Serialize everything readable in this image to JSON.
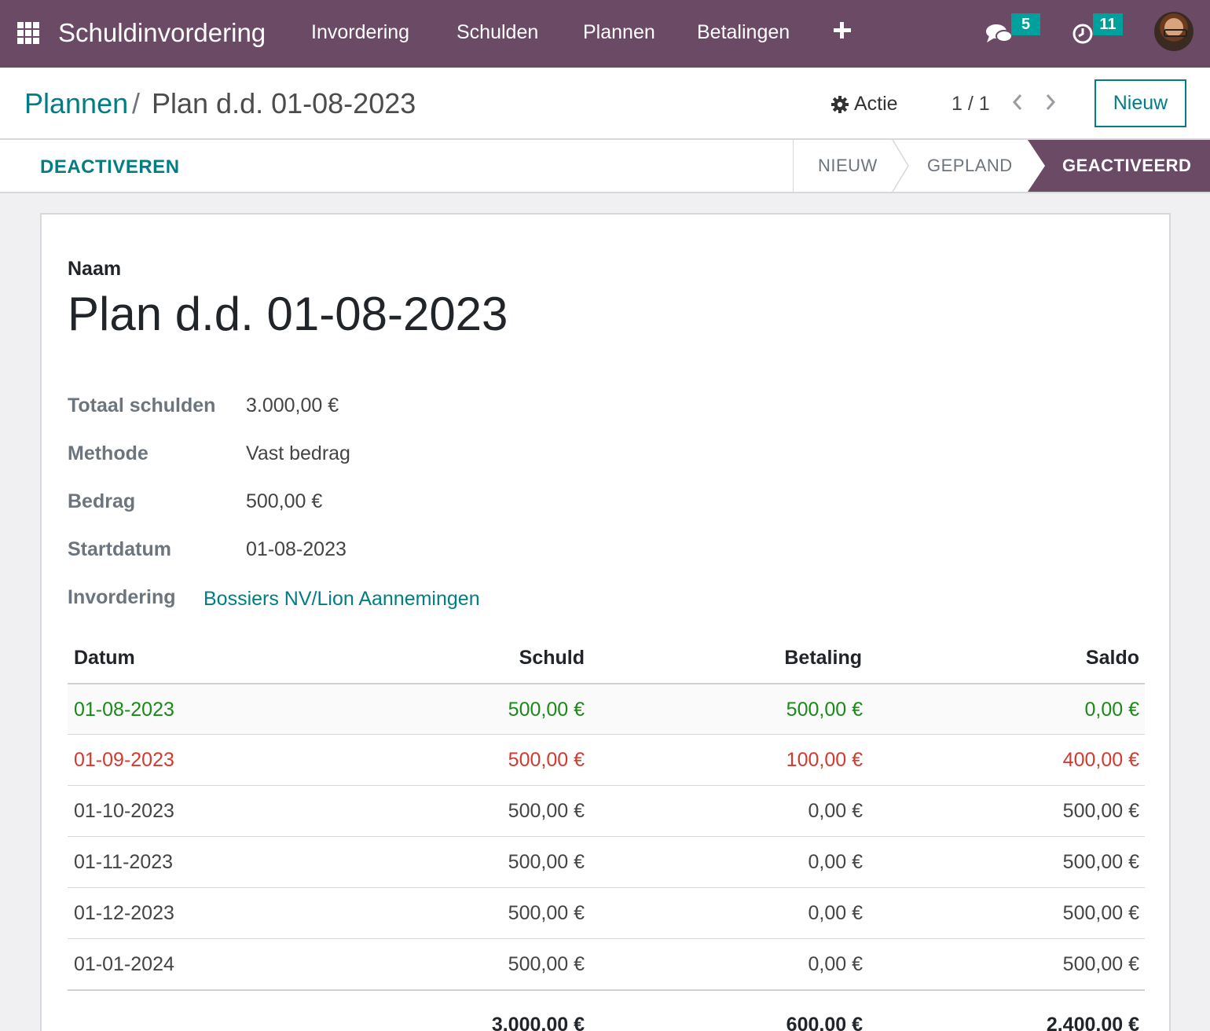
{
  "navbar": {
    "brand": "Schuldinvordering",
    "menu": [
      "Invordering",
      "Schulden",
      "Plannen",
      "Betalingen"
    ],
    "messages_badge": "5",
    "activities_badge": "11",
    "icons": [
      "apps-grid-icon",
      "plus-icon",
      "chat-icon",
      "clock-icon",
      "avatar"
    ]
  },
  "control_panel": {
    "breadcrumb_root": "Plannen",
    "breadcrumb_sep": "/",
    "breadcrumb_current": "Plan d.d. 01-08-2023",
    "action_label": "Actie",
    "pager": "1 / 1",
    "new_button": "Nieuw"
  },
  "statusbar": {
    "deactivate_button": "DEACTIVEREN",
    "stages": [
      "NIEUW",
      "GEPLAND",
      "GEACTIVEERD"
    ],
    "active_stage": "GEACTIVEERD"
  },
  "form": {
    "name_label": "Naam",
    "name_value": "Plan d.d. 01-08-2023",
    "fields": [
      {
        "label": "Totaal schulden",
        "value": "3.000,00 €"
      },
      {
        "label": "Methode",
        "value": "Vast bedrag"
      },
      {
        "label": "Bedrag",
        "value": "500,00 €"
      },
      {
        "label": "Startdatum",
        "value": "01-08-2023"
      }
    ],
    "collection_label": "Invordering",
    "collection_link": "Bossiers NV/Lion Aannemingen"
  },
  "table": {
    "headers": {
      "date": "Datum",
      "debt": "Schuld",
      "payment": "Betaling",
      "balance": "Saldo"
    },
    "rows": [
      {
        "date": "01-08-2023",
        "debt": "500,00 €",
        "payment": "500,00 €",
        "balance": "0,00 €",
        "status": "green"
      },
      {
        "date": "01-09-2023",
        "debt": "500,00 €",
        "payment": "100,00 €",
        "balance": "400,00 €",
        "status": "red"
      },
      {
        "date": "01-10-2023",
        "debt": "500,00 €",
        "payment": "0,00 €",
        "balance": "500,00 €",
        "status": "normal"
      },
      {
        "date": "01-11-2023",
        "debt": "500,00 €",
        "payment": "0,00 €",
        "balance": "500,00 €",
        "status": "normal"
      },
      {
        "date": "01-12-2023",
        "debt": "500,00 €",
        "payment": "0,00 €",
        "balance": "500,00 €",
        "status": "normal"
      },
      {
        "date": "01-01-2024",
        "debt": "500,00 €",
        "payment": "0,00 €",
        "balance": "500,00 €",
        "status": "normal"
      }
    ],
    "totals": {
      "debt": "3.000,00 €",
      "payment": "600,00 €",
      "balance": "2.400,00 €"
    }
  },
  "colors": {
    "brand": "#6b4a66",
    "accent": "#017e84",
    "badge": "#00a09d",
    "paid": "#198a19",
    "overdue": "#d23a2f"
  }
}
